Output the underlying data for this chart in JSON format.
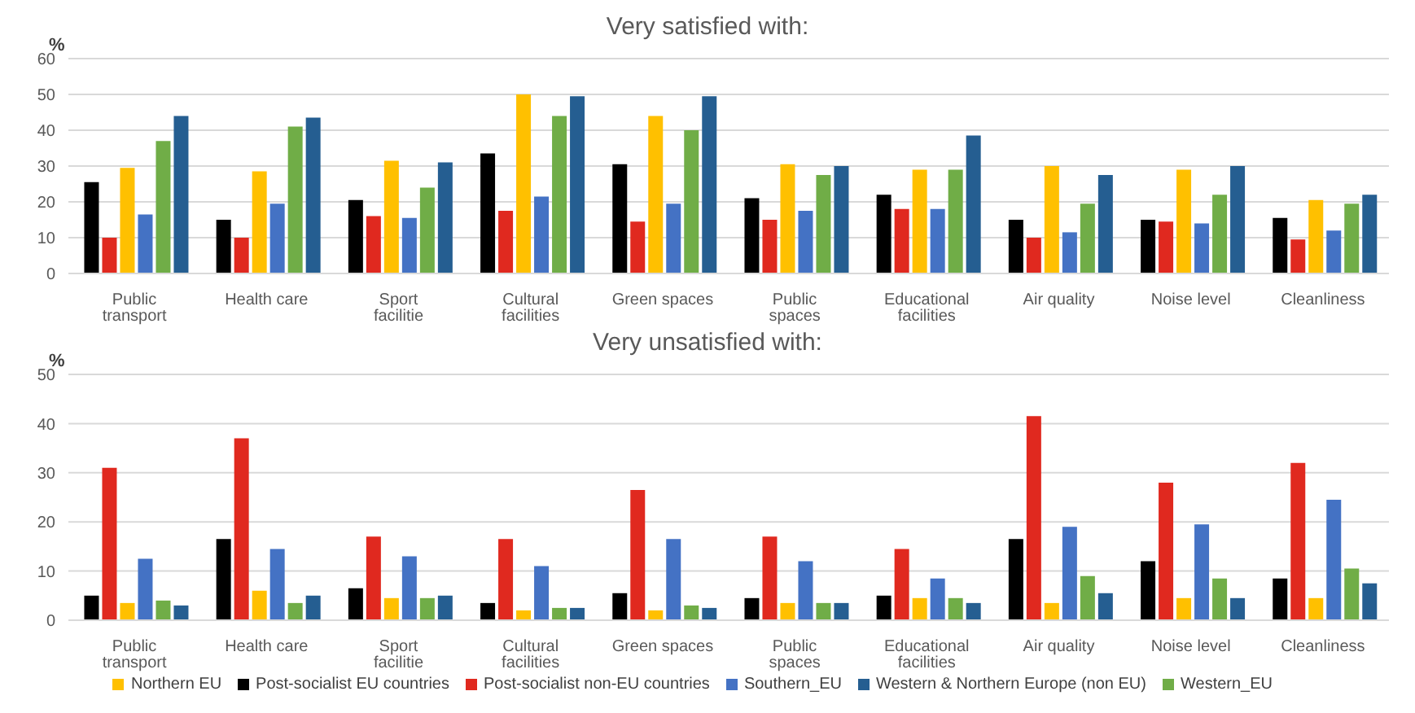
{
  "chart_data": [
    {
      "type": "bar",
      "title": "Very satisfied with:",
      "ylabel": "%",
      "categories": [
        "Public transport",
        "Health care",
        "Sport facilitie",
        "Cultural facilities",
        "Green spaces",
        "Public spaces",
        "Educational facilities",
        "Air quality",
        "Noise level",
        "Cleanliness"
      ],
      "ylim": [
        0,
        60
      ],
      "yticks": [
        0,
        10,
        20,
        30,
        40,
        50,
        60
      ],
      "grid": "y",
      "legend": false,
      "series": [
        {
          "color": "#000000",
          "values": [
            25.5,
            15,
            20.5,
            33.5,
            30.5,
            21,
            22,
            15,
            15,
            15.5
          ]
        },
        {
          "color": "#e0291f",
          "values": [
            10,
            10,
            16,
            17.5,
            14.5,
            15,
            18,
            10,
            14.5,
            9.5
          ]
        },
        {
          "color": "#ffc000",
          "values": [
            29.5,
            28.5,
            31.5,
            50,
            44,
            30.5,
            29,
            30,
            29,
            20.5
          ]
        },
        {
          "color": "#4472c4",
          "values": [
            16.5,
            19.5,
            15.5,
            21.5,
            19.5,
            17.5,
            18,
            11.5,
            14,
            12
          ]
        },
        {
          "color": "#70ad47",
          "values": [
            37,
            41,
            24,
            44,
            40,
            27.5,
            29,
            19.5,
            22,
            19.5
          ]
        },
        {
          "color": "#255e91",
          "values": [
            44,
            43.5,
            31,
            49.5,
            49.5,
            30,
            38.5,
            27.5,
            30,
            22
          ]
        }
      ]
    },
    {
      "type": "bar",
      "title": "Very unsatisfied with:",
      "ylabel": "%",
      "categories": [
        "Public transport",
        "Health care",
        "Sport facilitie",
        "Cultural facilities",
        "Green spaces",
        "Public spaces",
        "Educational facilities",
        "Air quality",
        "Noise level",
        "Cleanliness"
      ],
      "ylim": [
        0,
        50
      ],
      "yticks": [
        0,
        10,
        20,
        30,
        40,
        50
      ],
      "grid": "y",
      "legend": "bottom",
      "series": [
        {
          "name": "Post-socialist EU countries",
          "color": "#000000",
          "values": [
            5,
            16.5,
            6.5,
            3.5,
            5.5,
            4.5,
            5,
            16.5,
            12,
            8.5
          ]
        },
        {
          "name": "Post-socialist non-EU countries",
          "color": "#e0291f",
          "values": [
            31,
            37,
            17,
            16.5,
            26.5,
            17,
            14.5,
            41.5,
            28,
            32
          ]
        },
        {
          "name": "Northern EU",
          "color": "#ffc000",
          "values": [
            3.5,
            6,
            4.5,
            2,
            2,
            3.5,
            4.5,
            3.5,
            4.5,
            4.5
          ]
        },
        {
          "name": "Southern_EU",
          "color": "#4472c4",
          "values": [
            12.5,
            14.5,
            13,
            11,
            16.5,
            12,
            8.5,
            19,
            19.5,
            24.5
          ]
        },
        {
          "name": "Western_EU",
          "color": "#70ad47",
          "values": [
            4,
            3.5,
            4.5,
            2.5,
            3,
            3.5,
            4.5,
            9,
            8.5,
            10.5
          ]
        },
        {
          "name": "Western & Northern Europe (non EU)",
          "color": "#255e91",
          "values": [
            3,
            5,
            5,
            2.5,
            2.5,
            3.5,
            3.5,
            5.5,
            4.5,
            7.5
          ]
        }
      ]
    }
  ]
}
